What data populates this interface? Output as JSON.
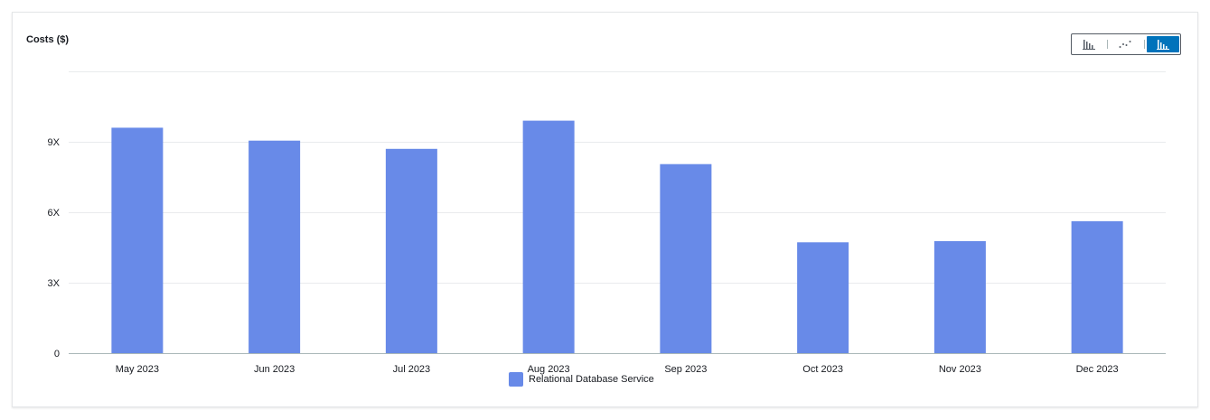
{
  "chart_data": {
    "type": "bar",
    "title": "Costs ($)",
    "categories": [
      "May 2023",
      "Jun 2023",
      "Jul 2023",
      "Aug 2023",
      "Sep 2023",
      "Oct 2023",
      "Nov 2023",
      "Dec 2023"
    ],
    "series": [
      {
        "name": "Relational Database Service",
        "values": [
          9.6,
          9.05,
          8.7,
          9.9,
          8.05,
          4.72,
          4.77,
          5.62
        ],
        "color": "#688ae8"
      }
    ],
    "yticks": [
      {
        "value": 0,
        "label": "0"
      },
      {
        "value": 3,
        "label": "3X"
      },
      {
        "value": 6,
        "label": "6X"
      },
      {
        "value": 9,
        "label": "9X"
      }
    ],
    "ylim": [
      0,
      12
    ],
    "grid": true,
    "legend": "bottom-center"
  },
  "controls": {
    "chart_type_toggle": [
      {
        "icon": "bar-chart-icon",
        "selected": false
      },
      {
        "icon": "line-chart-icon",
        "selected": false
      },
      {
        "icon": "stacked-bar-chart-icon",
        "selected": true
      }
    ]
  }
}
